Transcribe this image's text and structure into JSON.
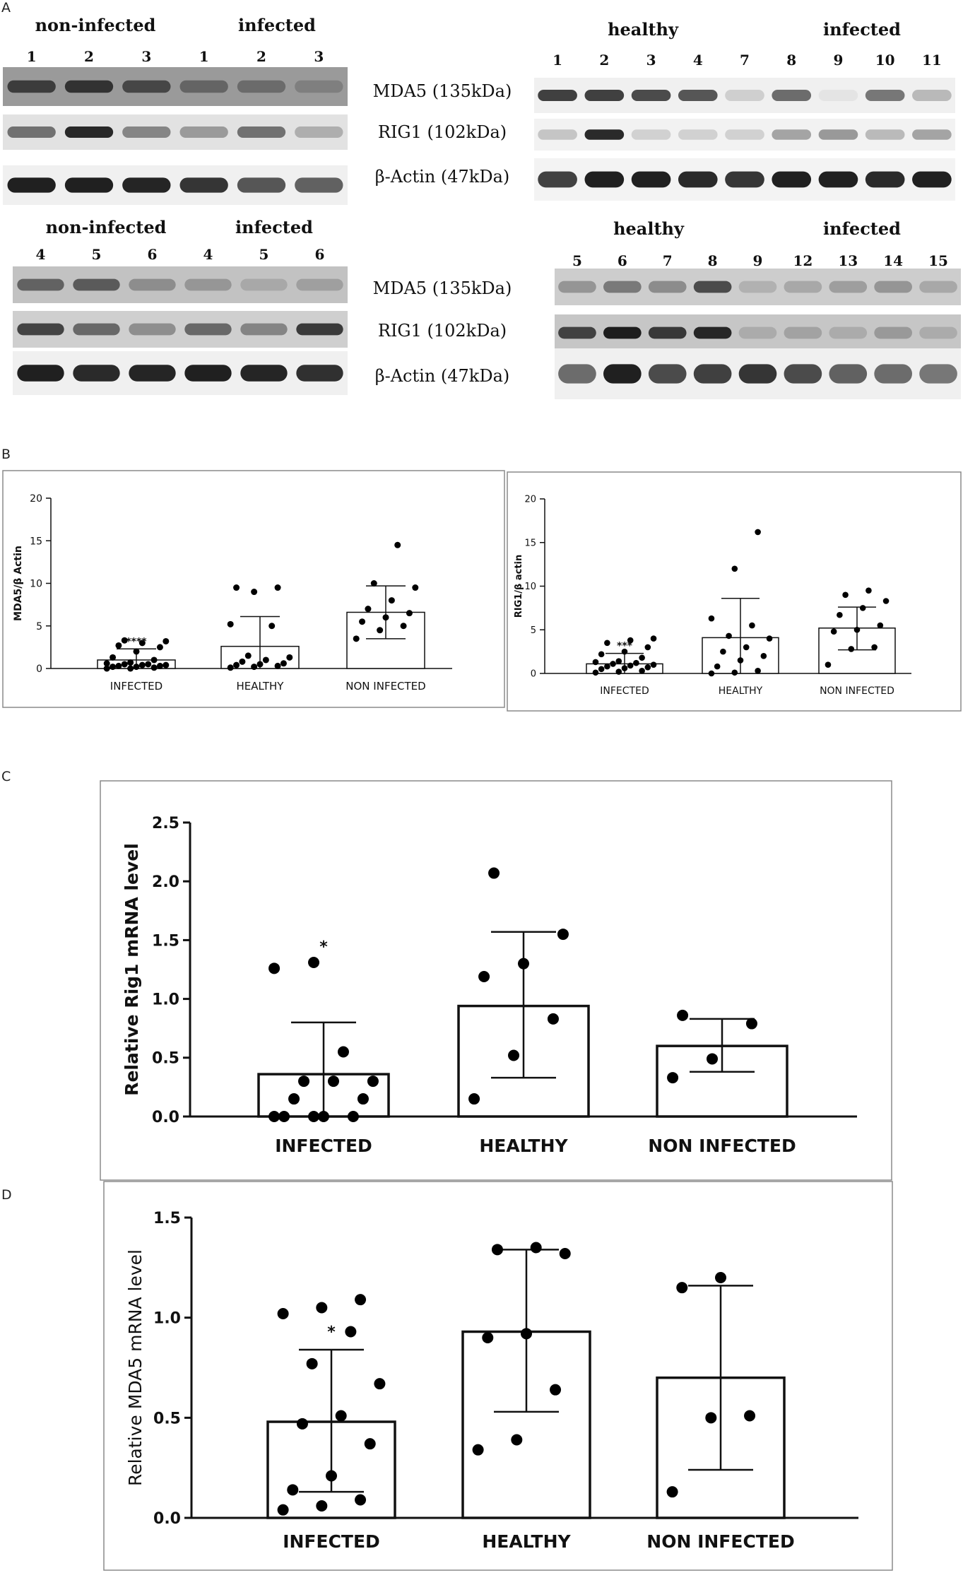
{
  "panel_letters": {
    "A": "A",
    "B": "B",
    "C": "C",
    "D": "D"
  },
  "western_blot": {
    "markers": {
      "mda5": "MDA5 (135kDa)",
      "rig1": "RIG1 (102kDa)",
      "actin": "β-Actin (47kDa)"
    },
    "top_left": {
      "group_labels": [
        "non-infected",
        "infected"
      ],
      "lanes": [
        "1",
        "2",
        "3",
        "1",
        "2",
        "3"
      ],
      "rows": {
        "mda5": [
          0.7,
          0.78,
          0.62,
          0.4,
          0.35,
          0.2
        ],
        "rig1": [
          0.55,
          0.9,
          0.45,
          0.35,
          0.55,
          0.25
        ],
        "actin": [
          0.95,
          0.95,
          0.92,
          0.85,
          0.7,
          0.65
        ]
      }
    },
    "bottom_left": {
      "group_labels": [
        "non-infected",
        "infected"
      ],
      "lanes": [
        "4",
        "5",
        "6",
        "4",
        "5",
        "6"
      ],
      "rows": {
        "mda5": [
          0.55,
          0.6,
          0.3,
          0.25,
          0.15,
          0.2
        ],
        "rig1": [
          0.75,
          0.55,
          0.35,
          0.55,
          0.4,
          0.8
        ],
        "actin": [
          0.95,
          0.9,
          0.92,
          0.95,
          0.92,
          0.88
        ]
      }
    },
    "top_right": {
      "group_labels": [
        "healthy",
        "infected"
      ],
      "lanes": [
        "1",
        "2",
        "3",
        "4",
        "7",
        "8",
        "9",
        "10",
        "11"
      ],
      "rows": {
        "mda5": [
          0.8,
          0.8,
          0.75,
          0.7,
          0.15,
          0.6,
          0.05,
          0.55,
          0.25
        ],
        "rig1": [
          0.2,
          0.9,
          0.15,
          0.15,
          0.15,
          0.35,
          0.4,
          0.25,
          0.35
        ],
        "actin": [
          0.8,
          0.95,
          0.95,
          0.9,
          0.85,
          0.95,
          0.95,
          0.9,
          0.95
        ]
      }
    },
    "bottom_right": {
      "group_labels": [
        "healthy",
        "infected"
      ],
      "lanes": [
        "5",
        "6",
        "7",
        "8",
        "9",
        "12",
        "13",
        "14",
        "15"
      ],
      "rows": {
        "mda5": [
          0.3,
          0.45,
          0.35,
          0.7,
          0.15,
          0.2,
          0.25,
          0.3,
          0.2
        ],
        "rig1": [
          0.75,
          0.95,
          0.8,
          0.9,
          0.15,
          0.2,
          0.15,
          0.25,
          0.15
        ],
        "actin": [
          0.6,
          0.95,
          0.75,
          0.8,
          0.85,
          0.75,
          0.65,
          0.6,
          0.55
        ]
      }
    }
  },
  "chart_data": [
    {
      "panel": "B",
      "type": "bar",
      "ylabel": "MDA5/β Actin",
      "ylim": [
        0,
        20
      ],
      "yticks": [
        "0",
        "5",
        "10",
        "15",
        "20"
      ],
      "categories": [
        "INFECTED",
        "HEALTHY",
        "NON INFECTED"
      ],
      "values": [
        1.0,
        2.6,
        6.6
      ],
      "error_upper": [
        2.3,
        6.1,
        9.7
      ],
      "error_lower": [
        0,
        0,
        3.5
      ],
      "significance": [
        "****",
        "",
        ""
      ],
      "points": [
        [
          0,
          0,
          0.1,
          0.2,
          0.2,
          0.3,
          0.3,
          0.4,
          0.4,
          0.5,
          0.5,
          0.6,
          0.7,
          1.0,
          1.3,
          2.0,
          2.5,
          2.7,
          3.0,
          3.2,
          3.3
        ],
        [
          0.1,
          0.2,
          0.3,
          0.4,
          0.5,
          0.6,
          0.8,
          1.0,
          1.3,
          1.5,
          5.0,
          5.2,
          9.0,
          9.5,
          9.5
        ],
        [
          3.5,
          4.5,
          5.0,
          5.5,
          6.0,
          6.5,
          7.0,
          8.0,
          9.5,
          10.0,
          14.5
        ]
      ]
    },
    {
      "panel": "B",
      "type": "bar",
      "ylabel": "RIG1/β actin",
      "ylim": [
        0,
        20
      ],
      "yticks": [
        "0",
        "5",
        "10",
        "15",
        "20"
      ],
      "categories": [
        "INFECTED",
        "HEALTHY",
        "NON INFECTED"
      ],
      "values": [
        1.1,
        4.1,
        5.2
      ],
      "error_upper": [
        2.3,
        8.6,
        7.6
      ],
      "error_lower": [
        0,
        0,
        2.7
      ],
      "significance": [
        "***",
        "",
        ""
      ],
      "points": [
        [
          0.1,
          0.2,
          0.3,
          0.5,
          0.6,
          0.7,
          0.8,
          0.9,
          1.0,
          1.1,
          1.2,
          1.3,
          1.4,
          1.8,
          2.2,
          2.5,
          3.0,
          3.5,
          3.8,
          4.0
        ],
        [
          0,
          0.1,
          0.3,
          0.8,
          1.5,
          2.0,
          2.5,
          3.0,
          4.0,
          4.3,
          5.5,
          6.3,
          12.0,
          16.2
        ],
        [
          1.0,
          2.8,
          3.0,
          4.8,
          5.0,
          5.5,
          6.7,
          7.5,
          8.3,
          9.0,
          9.5
        ]
      ]
    },
    {
      "panel": "C",
      "type": "bar",
      "ylabel": "Relative Rig1 mRNA level",
      "ylim": [
        0,
        2.5
      ],
      "yticks": [
        "0.0",
        "0.5",
        "1.0",
        "1.5",
        "2.0",
        "2.5"
      ],
      "categories": [
        "INFECTED",
        "HEALTHY",
        "NON INFECTED"
      ],
      "values": [
        0.36,
        0.94,
        0.6
      ],
      "error_upper": [
        0.8,
        1.57,
        0.83
      ],
      "error_lower": [
        0,
        0.33,
        0.38
      ],
      "significance": [
        "*",
        "",
        ""
      ],
      "points": [
        [
          0.0,
          0.0,
          0.0,
          0.0,
          0.0,
          0.15,
          0.15,
          0.3,
          0.3,
          0.3,
          0.55,
          1.26,
          1.31
        ],
        [
          0.15,
          0.52,
          0.83,
          1.19,
          1.3,
          1.55,
          2.07
        ],
        [
          0.33,
          0.49,
          0.79,
          0.86
        ]
      ]
    },
    {
      "panel": "D",
      "type": "bar",
      "ylabel": "Relative MDA5 mRNA level",
      "ylim": [
        0,
        1.5
      ],
      "yticks": [
        "0.0",
        "0.5",
        "1.0",
        "1.5"
      ],
      "categories": [
        "INFECTED",
        "HEALTHY",
        "NON INFECTED"
      ],
      "values": [
        0.48,
        0.93,
        0.7
      ],
      "error_upper": [
        0.84,
        1.34,
        1.16
      ],
      "error_lower": [
        0.13,
        0.53,
        0.24
      ],
      "significance": [
        "*",
        "",
        ""
      ],
      "points": [
        [
          0.04,
          0.06,
          0.09,
          0.14,
          0.21,
          0.37,
          0.47,
          0.51,
          0.67,
          0.77,
          0.93,
          1.02,
          1.05,
          1.09
        ],
        [
          0.34,
          0.39,
          0.64,
          0.9,
          0.92,
          1.32,
          1.34,
          1.35
        ],
        [
          0.13,
          0.5,
          0.51,
          1.15,
          1.2
        ]
      ]
    }
  ]
}
